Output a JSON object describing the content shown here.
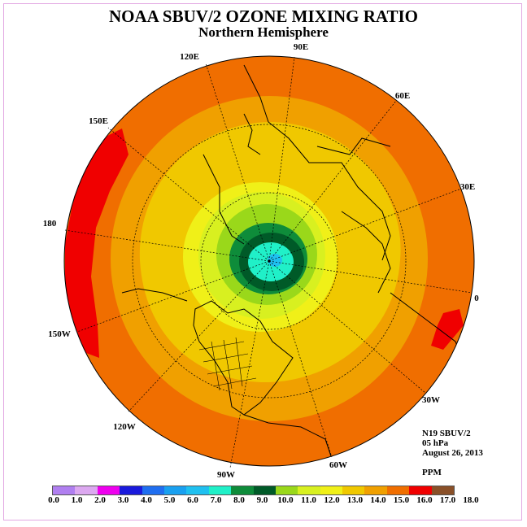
{
  "title": "NOAA SBUV/2 OZONE MIXING RATIO",
  "subtitle": "Northern Hemisphere",
  "longitude_labels": [
    "90E",
    "60E",
    "30E",
    "0",
    "30W",
    "60W",
    "90W",
    "120W",
    "150W",
    "180",
    "150E",
    "120E"
  ],
  "info": {
    "instrument": "N19 SBUV/2",
    "level": "05 hPa",
    "date": "August 26, 2013",
    "units": "PPM"
  },
  "colorbar": {
    "colors": [
      "#b07ff0",
      "#dca8f0",
      "#ee00ee",
      "#1a1adc",
      "#1f6ef0",
      "#19a0f0",
      "#1fc0f0",
      "#20f0c8",
      "#0e8c3a",
      "#005a28",
      "#9ad81a",
      "#d8f020",
      "#f0f018",
      "#f0c800",
      "#f0a000",
      "#f06e00",
      "#f00000",
      "#8a5028"
    ],
    "tick_labels": [
      "0.0",
      "1.0",
      "2.0",
      "3.0",
      "4.0",
      "5.0",
      "6.0",
      "7.0",
      "8.0",
      "9.0",
      "10.0",
      "11.0",
      "12.0",
      "13.0",
      "14.0",
      "15.0",
      "16.0",
      "17.0",
      "18.0"
    ]
  }
}
